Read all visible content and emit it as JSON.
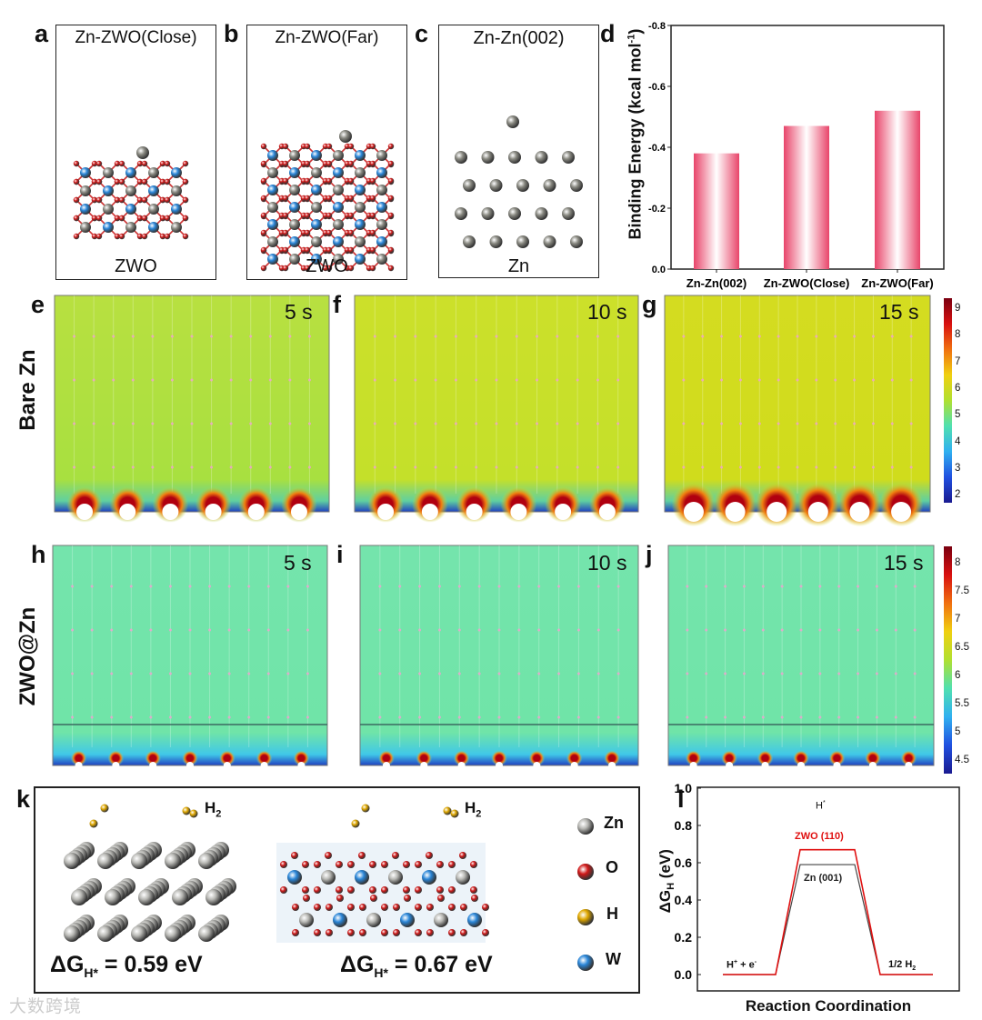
{
  "panels": {
    "a": {
      "letter": "a",
      "title": "Zn-ZWO(Close)",
      "substrate": "ZWO"
    },
    "b": {
      "letter": "b",
      "title": "Zn-ZWO(Far)",
      "substrate": "ZWO"
    },
    "c": {
      "letter": "c",
      "title": "Zn-Zn(002)",
      "substrate": "Zn"
    },
    "d": {
      "letter": "d"
    },
    "e": {
      "letter": "e",
      "time": "5 s"
    },
    "f": {
      "letter": "f",
      "time": "10 s"
    },
    "g": {
      "letter": "g",
      "time": "15 s"
    },
    "h": {
      "letter": "h",
      "time": "5 s"
    },
    "i": {
      "letter": "i",
      "time": "10 s"
    },
    "j": {
      "letter": "j",
      "time": "15 s"
    },
    "k": {
      "letter": "k"
    },
    "l": {
      "letter": "l"
    }
  },
  "row_labels": {
    "bare": "Bare Zn",
    "coated": "ZWO@Zn"
  },
  "colorbar_top": {
    "ticks": [
      "9",
      "8",
      "7",
      "6",
      "5",
      "4",
      "3",
      "2"
    ]
  },
  "colorbar_bottom": {
    "ticks": [
      "8",
      "7.5",
      "7",
      "6.5",
      "6",
      "5.5",
      "5",
      "4.5"
    ]
  },
  "colors": {
    "bar": "#e8456a",
    "zwo_line": "#e01010",
    "zn_line": "#444444",
    "zn_atom": "#8a8a82",
    "o_atom": "#d01818",
    "h_atom": "#e0a800",
    "w_atom": "#2a86d8"
  },
  "panel_k": {
    "h2_label": "H",
    "h2_sub": "2",
    "left_eq": {
      "prefix": "ΔG",
      "sub": "H*",
      "rest": " = 0.59 eV"
    },
    "right_eq": {
      "prefix": "ΔG",
      "sub": "H*",
      "rest": " = 0.67 eV"
    },
    "legend": [
      {
        "label": "Zn"
      },
      {
        "label": "O"
      },
      {
        "label": "H"
      },
      {
        "label": "W"
      }
    ]
  },
  "watermark": "大数跨境",
  "chart_data": [
    {
      "type": "bar",
      "title": "",
      "ylabel": "Binding Energy (kcal mol-1)",
      "ylabel_main": "Binding Energy (kcal mol",
      "ylabel_sup": "-1",
      "ylabel_end": ")",
      "categories": [
        "Zn-Zn(002)",
        "Zn-ZWO(Close)",
        "Zn-ZWO(Far)"
      ],
      "values": [
        -0.38,
        -0.47,
        -0.52
      ],
      "ylim": [
        0.0,
        -0.8
      ],
      "yticks": [
        "0.0",
        "-0.2",
        "-0.4",
        "-0.6",
        "-0.8"
      ],
      "ytick_values": [
        0,
        -0.2,
        -0.4,
        -0.6,
        -0.8
      ]
    },
    {
      "type": "line",
      "xlabel": "Reaction Coordination",
      "ylabel": "ΔGH (eV)",
      "ylabel_main": "ΔG",
      "ylabel_sub": "H",
      "ylabel_end": " (eV)",
      "ylim": [
        -0.1,
        1.0
      ],
      "yticks": [
        "0.0",
        "0.2",
        "0.4",
        "0.6",
        "0.8",
        "1.0"
      ],
      "ytick_values": [
        0,
        0.2,
        0.4,
        0.6,
        0.8,
        1.0
      ],
      "states": [
        "H+ + e-",
        "H*",
        "1/2 H2"
      ],
      "state_labels": {
        "initial": "H",
        "initial_sup": "+",
        "initial_mid": " + e",
        "initial_sup2": "-",
        "middle": "H",
        "middle_sup": "*",
        "final": "1/2 H",
        "final_sub": "2"
      },
      "series": [
        {
          "name": "ZWO (110)",
          "values": [
            0.0,
            0.67,
            0.0
          ]
        },
        {
          "name": "Zn (001)",
          "values": [
            0.0,
            0.59,
            0.0
          ]
        }
      ]
    }
  ]
}
